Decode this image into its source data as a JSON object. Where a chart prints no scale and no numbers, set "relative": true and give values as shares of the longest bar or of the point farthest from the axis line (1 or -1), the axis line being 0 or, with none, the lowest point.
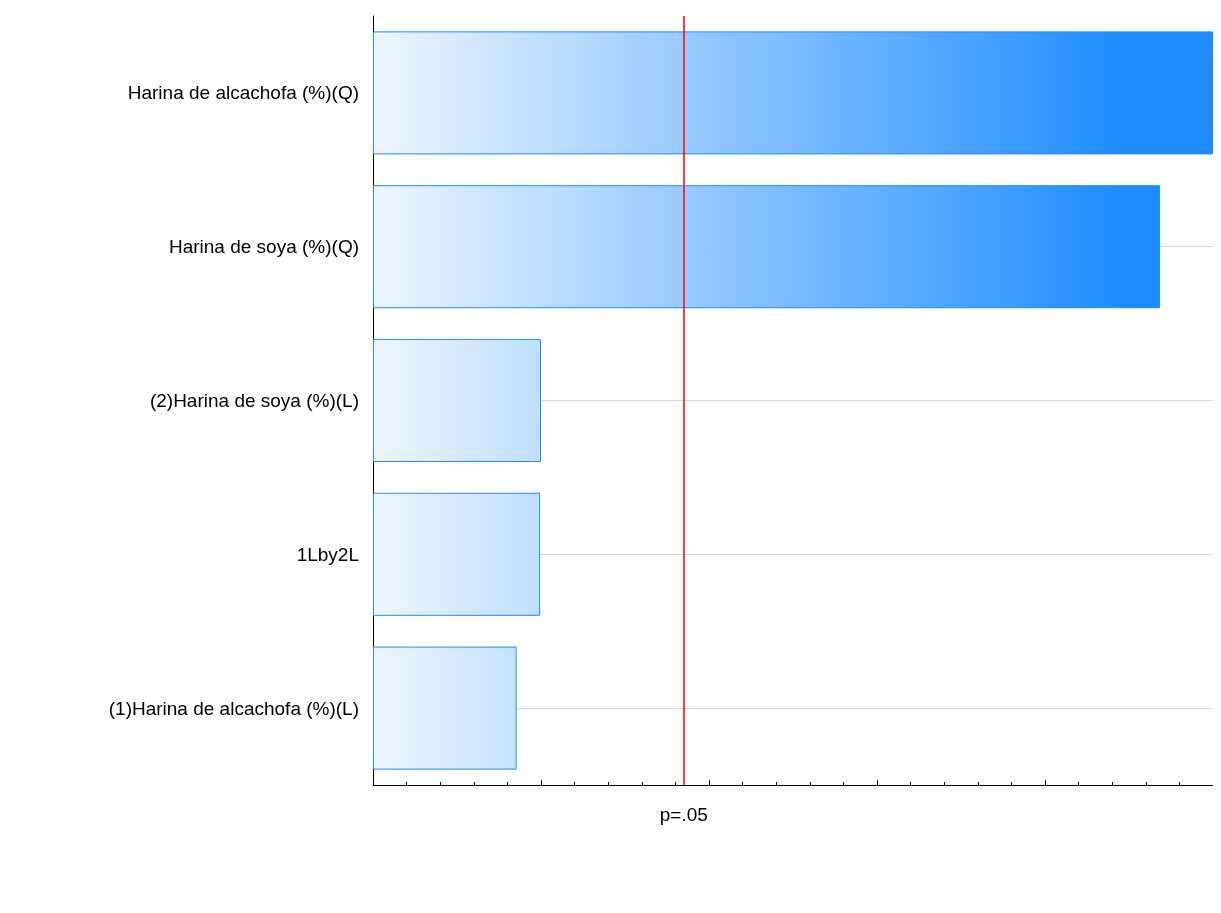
{
  "chart_data": {
    "type": "bar",
    "orientation": "horizontal",
    "relative": true,
    "categories": [
      "Harina de alcachofa (%)(Q)",
      "Harina de soya (%)(Q)",
      "(2)Harina de soya (%)(L)",
      "1Lby2L",
      "(1)Harina de alcachofa (%)(L)"
    ],
    "values": [
      1,
      0.937,
      0.2,
      0.199,
      0.171
    ],
    "color": "#1e8cff",
    "grid": "y",
    "ref_lines": [
      {
        "axis": "x",
        "value": 0.368,
        "label": "p=.05",
        "color": "#ff0000"
      }
    ]
  }
}
